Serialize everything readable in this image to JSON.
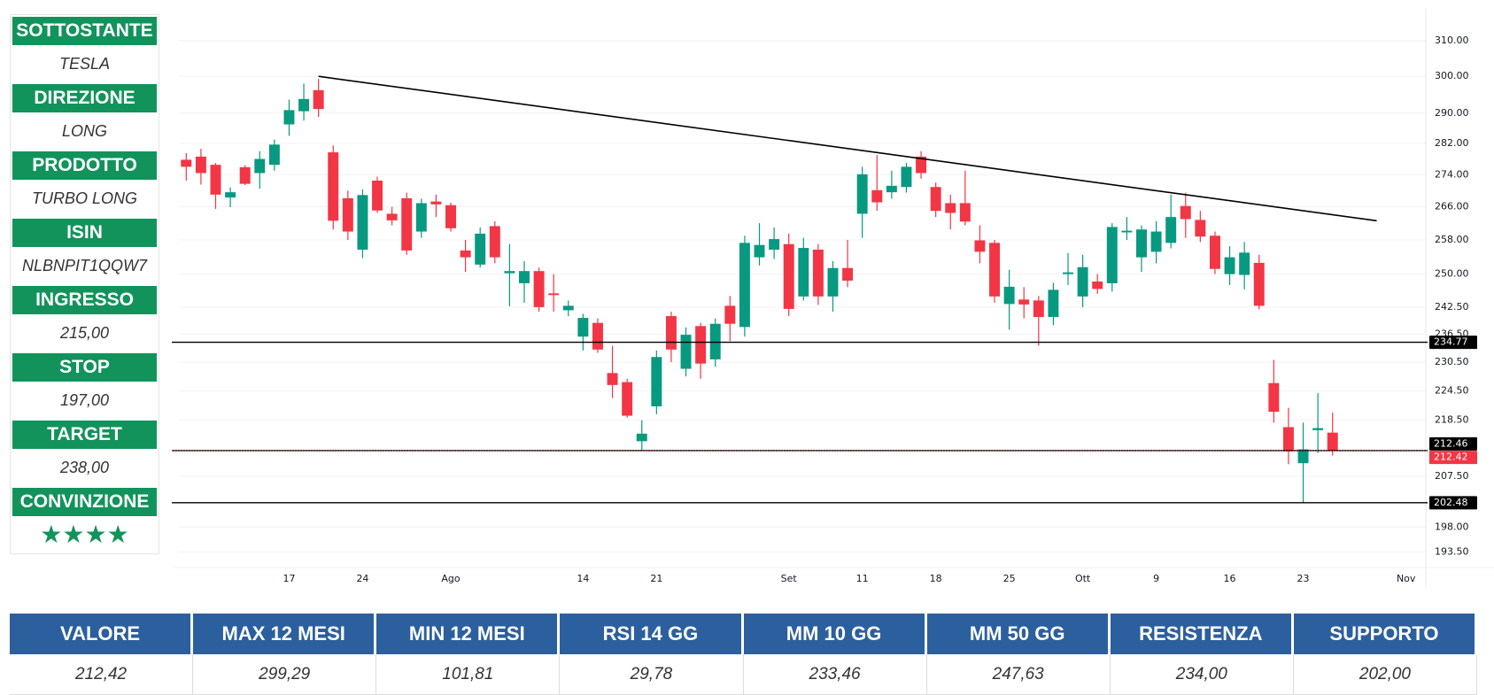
{
  "panel": [
    {
      "label": "SOTTOSTANTE",
      "value": "TESLA"
    },
    {
      "label": "DIREZIONE",
      "value": "LONG"
    },
    {
      "label": "PRODOTTO",
      "value": "TURBO LONG"
    },
    {
      "label": "ISIN",
      "value": "NLBNPIT1QQW7"
    },
    {
      "label": "INGRESSO",
      "value": "215,00"
    },
    {
      "label": "STOP",
      "value": "197,00"
    },
    {
      "label": "TARGET",
      "value": "238,00"
    },
    {
      "label": "CONVINZIONE",
      "value": "★★★★"
    }
  ],
  "chart_data": {
    "type": "candlestick",
    "log_scale": true,
    "grid": true,
    "up_color": "#089981",
    "down_color": "#f23645",
    "categories": [
      null,
      null,
      null,
      null,
      null,
      null,
      null,
      "17",
      null,
      null,
      null,
      null,
      "24",
      null,
      null,
      null,
      null,
      null,
      "Ago",
      null,
      null,
      null,
      null,
      null,
      null,
      null,
      null,
      "14",
      null,
      null,
      null,
      null,
      "21",
      null,
      null,
      null,
      null,
      null,
      null,
      null,
      null,
      "Set",
      null,
      null,
      null,
      null,
      "11",
      null,
      null,
      null,
      null,
      "18",
      null,
      null,
      null,
      null,
      "25",
      null,
      null,
      null,
      null,
      "Ott",
      null,
      null,
      null,
      null,
      "9",
      null,
      null,
      null,
      null,
      "16",
      null,
      null,
      null,
      null,
      "23",
      null,
      null,
      null,
      null,
      null,
      null,
      "Nov"
    ],
    "open": [
      277.8,
      278.6,
      276.5,
      268.3,
      275.9,
      274.4,
      276.5,
      287,
      290.5,
      296.2,
      279.7,
      268.1,
      255.7,
      272.5,
      264.3,
      268.1,
      260,
      267.3,
      266.4,
      255.5,
      252.2,
      261.3,
      250.2,
      247.9,
      250.7,
      245.6,
      241.8,
      236,
      239,
      228.2,
      226.3,
      214.3,
      221.3,
      240.5,
      229.1,
      238.3,
      231.1,
      242.8,
      238.1,
      253.9,
      255.7,
      257,
      244.9,
      255.7,
      244.9,
      251.4,
      264.3,
      270.1,
      269.6,
      270.9,
      278.6,
      270.9,
      266.9,
      266.9,
      257.9,
      257.3,
      243.2,
      244.2,
      244,
      240.3,
      250,
      244.9,
      248.3,
      247.9,
      259.8,
      253.9,
      255.2,
      257.3,
      266.2,
      262.8,
      259,
      250,
      249.8,
      252.6,
      226.1,
      217.1,
      210,
      216.5,
      216,
      null,
      null,
      null,
      null,
      null
    ],
    "high": [
      279.5,
      280.6,
      277,
      270.8,
      276.4,
      280,
      283,
      293.6,
      298,
      299.29,
      281.5,
      270,
      270.3,
      273.5,
      266,
      269.5,
      268,
      269,
      267,
      258,
      261,
      262.5,
      257,
      253,
      251.5,
      250,
      244,
      241,
      240,
      234,
      227,
      218.5,
      233,
      241.5,
      238,
      239,
      240,
      245,
      259,
      262,
      261,
      259.5,
      258.5,
      257,
      253,
      258,
      276,
      279,
      275,
      277,
      280,
      272,
      269,
      275,
      261.5,
      258,
      251,
      247,
      245,
      248,
      254.9,
      254.5,
      250,
      262,
      263.5,
      261.5,
      262.5,
      269,
      269.5,
      265,
      260,
      256.5,
      257.5,
      254.5,
      231,
      221,
      218,
      224,
      220,
      null,
      null,
      null,
      null,
      null
    ],
    "low": [
      272.5,
      271.5,
      265.5,
      265.9,
      271.4,
      270.5,
      275,
      284,
      288,
      289,
      260.5,
      258,
      253.7,
      264.5,
      261.5,
      254.5,
      258.5,
      263.5,
      260,
      250.5,
      251.5,
      252.5,
      242.7,
      243.5,
      241.5,
      241.5,
      240.5,
      233,
      232.5,
      223,
      219,
      212.5,
      219.7,
      230.5,
      227.5,
      227,
      229.5,
      235,
      236,
      252,
      253.5,
      240.5,
      244,
      243,
      241.5,
      247,
      258.5,
      265,
      268,
      269.5,
      273,
      263.5,
      260.5,
      261.5,
      252.5,
      243.5,
      237.5,
      240,
      234,
      238.5,
      247.5,
      242.5,
      245.5,
      246,
      258,
      250.5,
      252.5,
      256,
      258.5,
      257.5,
      250,
      247.5,
      246.5,
      242,
      218,
      209.8,
      202.5,
      212,
      211.5,
      null,
      null,
      null,
      null,
      null
    ],
    "close": [
      276,
      274.4,
      269,
      269.6,
      271.7,
      278,
      281.7,
      290.8,
      293.8,
      291.1,
      262.6,
      260,
      268.9,
      265.1,
      262.7,
      255.5,
      266.9,
      266.6,
      260.8,
      253.9,
      259.5,
      253.9,
      250.7,
      250.7,
      242.5,
      245.2,
      242.8,
      240.1,
      233.2,
      225.7,
      219.4,
      215.8,
      231.6,
      233.2,
      236.4,
      230.2,
      238.8,
      238.8,
      257.3,
      256.8,
      258.2,
      242.1,
      256.1,
      244.9,
      251.4,
      248.5,
      274.1,
      267.1,
      271.2,
      276,
      274.4,
      265,
      264.5,
      262.4,
      255.2,
      244.9,
      247.1,
      243.1,
      240.3,
      246.4,
      250.4,
      251.6,
      246.6,
      261.1,
      260.2,
      260.5,
      260,
      263.5,
      263,
      258.8,
      251.2,
      253.9,
      255,
      242.8,
      220.2,
      212.3,
      212.7,
      216.9,
      212.42,
      null,
      null,
      null,
      null,
      null
    ],
    "ylim": [
      190.9,
      317.7
    ],
    "yticks": [
      {
        "value": 310,
        "label": "310.00"
      },
      {
        "value": 300,
        "label": "300.00"
      },
      {
        "value": 290,
        "label": "290.00"
      },
      {
        "value": 282,
        "label": "282.00"
      },
      {
        "value": 274,
        "label": "274.00"
      },
      {
        "value": 266,
        "label": "266.00"
      },
      {
        "value": 258,
        "label": "258.00"
      },
      {
        "value": 250,
        "label": "250.00"
      },
      {
        "value": 242.5,
        "label": "242.50"
      },
      {
        "value": 236.5,
        "label": "236.50"
      },
      {
        "value": 230.5,
        "label": "230.50"
      },
      {
        "value": 224.5,
        "label": "224.50"
      },
      {
        "value": 218.5,
        "label": "218.50"
      },
      {
        "value": 207.5,
        "label": "207.50"
      },
      {
        "value": 198,
        "label": "198.00"
      },
      {
        "value": 193.5,
        "label": "193.50"
      }
    ],
    "hlines": [
      {
        "value": 234.77,
        "color": "#000000"
      },
      {
        "value": 212.46,
        "color": "#000000"
      },
      {
        "value": 212.42,
        "color": "#f23645",
        "dashed": true
      },
      {
        "value": 202.48,
        "color": "#000000"
      }
    ],
    "trend_line": {
      "color": "#000000",
      "points": [
        {
          "index": 9,
          "value": 300
        },
        {
          "index": 81,
          "value": 262.6
        }
      ]
    }
  },
  "table": {
    "headers": [
      "VALORE",
      "MAX 12 MESI",
      "MIN 12 MESI",
      "RSI 14 GG",
      "MM 10 GG",
      "MM 50 GG",
      "RESISTENZA",
      "SUPPORTO"
    ],
    "rows": [
      [
        "212,42",
        "299,29",
        "101,81",
        "29,78",
        "233,46",
        "247,63",
        "234,00",
        "202,00"
      ]
    ]
  }
}
